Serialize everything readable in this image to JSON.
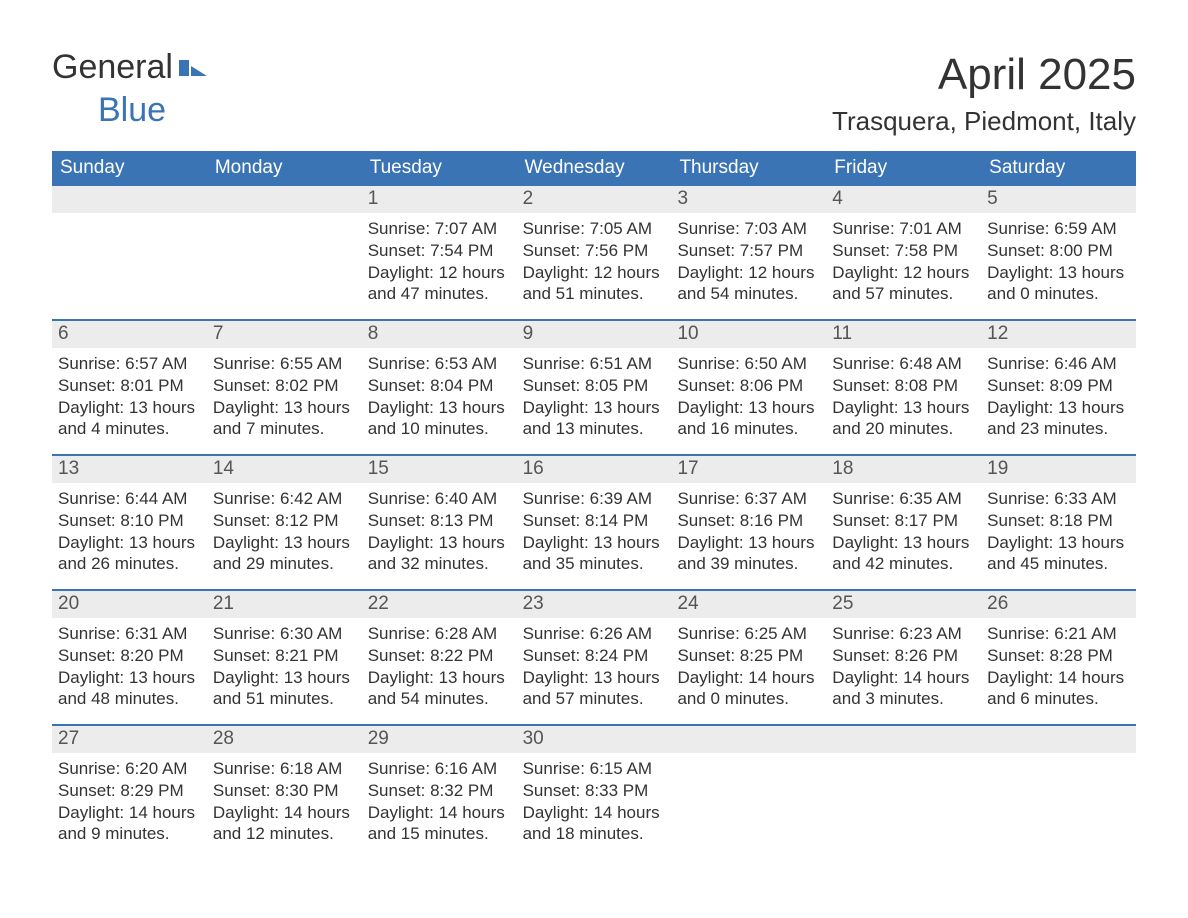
{
  "logo": {
    "general": "General",
    "blue": "Blue"
  },
  "title": "April 2025",
  "subtitle": "Trasquera, Piedmont, Italy",
  "colors": {
    "header_bg": "#3a74b5",
    "header_text": "#ffffff",
    "daynum_bg": "#ececec",
    "brand_blue": "#3a74b5",
    "text": "#333333"
  },
  "day_headers": [
    "Sunday",
    "Monday",
    "Tuesday",
    "Wednesday",
    "Thursday",
    "Friday",
    "Saturday"
  ],
  "weeks": [
    [
      {
        "num": "",
        "sunrise": "",
        "sunset": "",
        "daylight": ""
      },
      {
        "num": "",
        "sunrise": "",
        "sunset": "",
        "daylight": ""
      },
      {
        "num": "1",
        "sunrise": "Sunrise: 7:07 AM",
        "sunset": "Sunset: 7:54 PM",
        "daylight": "Daylight: 12 hours and 47 minutes."
      },
      {
        "num": "2",
        "sunrise": "Sunrise: 7:05 AM",
        "sunset": "Sunset: 7:56 PM",
        "daylight": "Daylight: 12 hours and 51 minutes."
      },
      {
        "num": "3",
        "sunrise": "Sunrise: 7:03 AM",
        "sunset": "Sunset: 7:57 PM",
        "daylight": "Daylight: 12 hours and 54 minutes."
      },
      {
        "num": "4",
        "sunrise": "Sunrise: 7:01 AM",
        "sunset": "Sunset: 7:58 PM",
        "daylight": "Daylight: 12 hours and 57 minutes."
      },
      {
        "num": "5",
        "sunrise": "Sunrise: 6:59 AM",
        "sunset": "Sunset: 8:00 PM",
        "daylight": "Daylight: 13 hours and 0 minutes."
      }
    ],
    [
      {
        "num": "6",
        "sunrise": "Sunrise: 6:57 AM",
        "sunset": "Sunset: 8:01 PM",
        "daylight": "Daylight: 13 hours and 4 minutes."
      },
      {
        "num": "7",
        "sunrise": "Sunrise: 6:55 AM",
        "sunset": "Sunset: 8:02 PM",
        "daylight": "Daylight: 13 hours and 7 minutes."
      },
      {
        "num": "8",
        "sunrise": "Sunrise: 6:53 AM",
        "sunset": "Sunset: 8:04 PM",
        "daylight": "Daylight: 13 hours and 10 minutes."
      },
      {
        "num": "9",
        "sunrise": "Sunrise: 6:51 AM",
        "sunset": "Sunset: 8:05 PM",
        "daylight": "Daylight: 13 hours and 13 minutes."
      },
      {
        "num": "10",
        "sunrise": "Sunrise: 6:50 AM",
        "sunset": "Sunset: 8:06 PM",
        "daylight": "Daylight: 13 hours and 16 minutes."
      },
      {
        "num": "11",
        "sunrise": "Sunrise: 6:48 AM",
        "sunset": "Sunset: 8:08 PM",
        "daylight": "Daylight: 13 hours and 20 minutes."
      },
      {
        "num": "12",
        "sunrise": "Sunrise: 6:46 AM",
        "sunset": "Sunset: 8:09 PM",
        "daylight": "Daylight: 13 hours and 23 minutes."
      }
    ],
    [
      {
        "num": "13",
        "sunrise": "Sunrise: 6:44 AM",
        "sunset": "Sunset: 8:10 PM",
        "daylight": "Daylight: 13 hours and 26 minutes."
      },
      {
        "num": "14",
        "sunrise": "Sunrise: 6:42 AM",
        "sunset": "Sunset: 8:12 PM",
        "daylight": "Daylight: 13 hours and 29 minutes."
      },
      {
        "num": "15",
        "sunrise": "Sunrise: 6:40 AM",
        "sunset": "Sunset: 8:13 PM",
        "daylight": "Daylight: 13 hours and 32 minutes."
      },
      {
        "num": "16",
        "sunrise": "Sunrise: 6:39 AM",
        "sunset": "Sunset: 8:14 PM",
        "daylight": "Daylight: 13 hours and 35 minutes."
      },
      {
        "num": "17",
        "sunrise": "Sunrise: 6:37 AM",
        "sunset": "Sunset: 8:16 PM",
        "daylight": "Daylight: 13 hours and 39 minutes."
      },
      {
        "num": "18",
        "sunrise": "Sunrise: 6:35 AM",
        "sunset": "Sunset: 8:17 PM",
        "daylight": "Daylight: 13 hours and 42 minutes."
      },
      {
        "num": "19",
        "sunrise": "Sunrise: 6:33 AM",
        "sunset": "Sunset: 8:18 PM",
        "daylight": "Daylight: 13 hours and 45 minutes."
      }
    ],
    [
      {
        "num": "20",
        "sunrise": "Sunrise: 6:31 AM",
        "sunset": "Sunset: 8:20 PM",
        "daylight": "Daylight: 13 hours and 48 minutes."
      },
      {
        "num": "21",
        "sunrise": "Sunrise: 6:30 AM",
        "sunset": "Sunset: 8:21 PM",
        "daylight": "Daylight: 13 hours and 51 minutes."
      },
      {
        "num": "22",
        "sunrise": "Sunrise: 6:28 AM",
        "sunset": "Sunset: 8:22 PM",
        "daylight": "Daylight: 13 hours and 54 minutes."
      },
      {
        "num": "23",
        "sunrise": "Sunrise: 6:26 AM",
        "sunset": "Sunset: 8:24 PM",
        "daylight": "Daylight: 13 hours and 57 minutes."
      },
      {
        "num": "24",
        "sunrise": "Sunrise: 6:25 AM",
        "sunset": "Sunset: 8:25 PM",
        "daylight": "Daylight: 14 hours and 0 minutes."
      },
      {
        "num": "25",
        "sunrise": "Sunrise: 6:23 AM",
        "sunset": "Sunset: 8:26 PM",
        "daylight": "Daylight: 14 hours and 3 minutes."
      },
      {
        "num": "26",
        "sunrise": "Sunrise: 6:21 AM",
        "sunset": "Sunset: 8:28 PM",
        "daylight": "Daylight: 14 hours and 6 minutes."
      }
    ],
    [
      {
        "num": "27",
        "sunrise": "Sunrise: 6:20 AM",
        "sunset": "Sunset: 8:29 PM",
        "daylight": "Daylight: 14 hours and 9 minutes."
      },
      {
        "num": "28",
        "sunrise": "Sunrise: 6:18 AM",
        "sunset": "Sunset: 8:30 PM",
        "daylight": "Daylight: 14 hours and 12 minutes."
      },
      {
        "num": "29",
        "sunrise": "Sunrise: 6:16 AM",
        "sunset": "Sunset: 8:32 PM",
        "daylight": "Daylight: 14 hours and 15 minutes."
      },
      {
        "num": "30",
        "sunrise": "Sunrise: 6:15 AM",
        "sunset": "Sunset: 8:33 PM",
        "daylight": "Daylight: 14 hours and 18 minutes."
      },
      {
        "num": "",
        "sunrise": "",
        "sunset": "",
        "daylight": ""
      },
      {
        "num": "",
        "sunrise": "",
        "sunset": "",
        "daylight": ""
      },
      {
        "num": "",
        "sunrise": "",
        "sunset": "",
        "daylight": ""
      }
    ]
  ]
}
